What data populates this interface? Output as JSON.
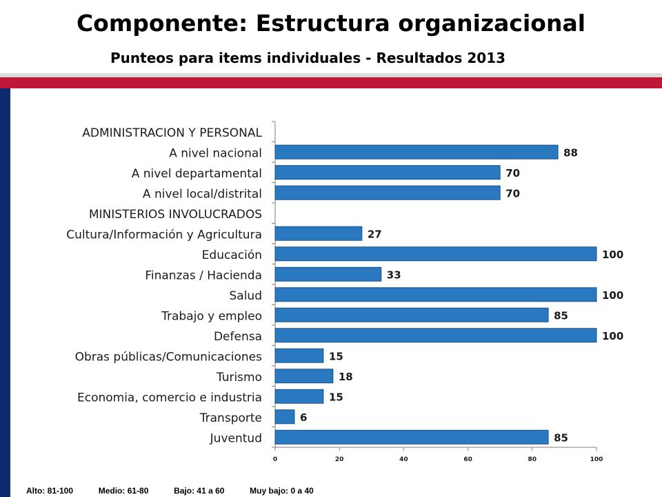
{
  "header": {
    "title": "Componente: Estructura organizacional",
    "subtitle": "Punteos para items individuales - Resultados 2013"
  },
  "colors": {
    "bar": "#2a78c0",
    "accent_red": "#c0163a",
    "accent_navy": "#0b2b6e"
  },
  "chart_data": {
    "type": "bar",
    "orientation": "horizontal",
    "categories": [
      "ADMINISTRACION Y PERSONAL",
      "A nivel nacional",
      "A nivel departamental",
      "A nivel local/distrital",
      "MINISTERIOS INVOLUCRADOS",
      "Cultura/Información y Agricultura",
      "Educación",
      "Finanzas / Hacienda",
      "Salud",
      "Trabajo y empleo",
      "Defensa",
      "Obras públicas/Comunicaciones",
      "Turismo",
      "Economia, comercio e industria",
      "Transporte",
      "Juventud"
    ],
    "values": [
      null,
      88,
      70,
      70,
      null,
      27,
      100,
      33,
      100,
      85,
      100,
      15,
      18,
      15,
      6,
      85
    ],
    "xlim": [
      0,
      100
    ],
    "xticks": [
      "0",
      "20",
      "40",
      "60",
      "80",
      "100"
    ],
    "grid": false
  },
  "footer": {
    "alto": "Alto: 81-100",
    "medio": "Medio: 61-80",
    "bajo": "Bajo: 41 a 60",
    "muy_bajo": "Muy bajo: 0 a 40"
  }
}
